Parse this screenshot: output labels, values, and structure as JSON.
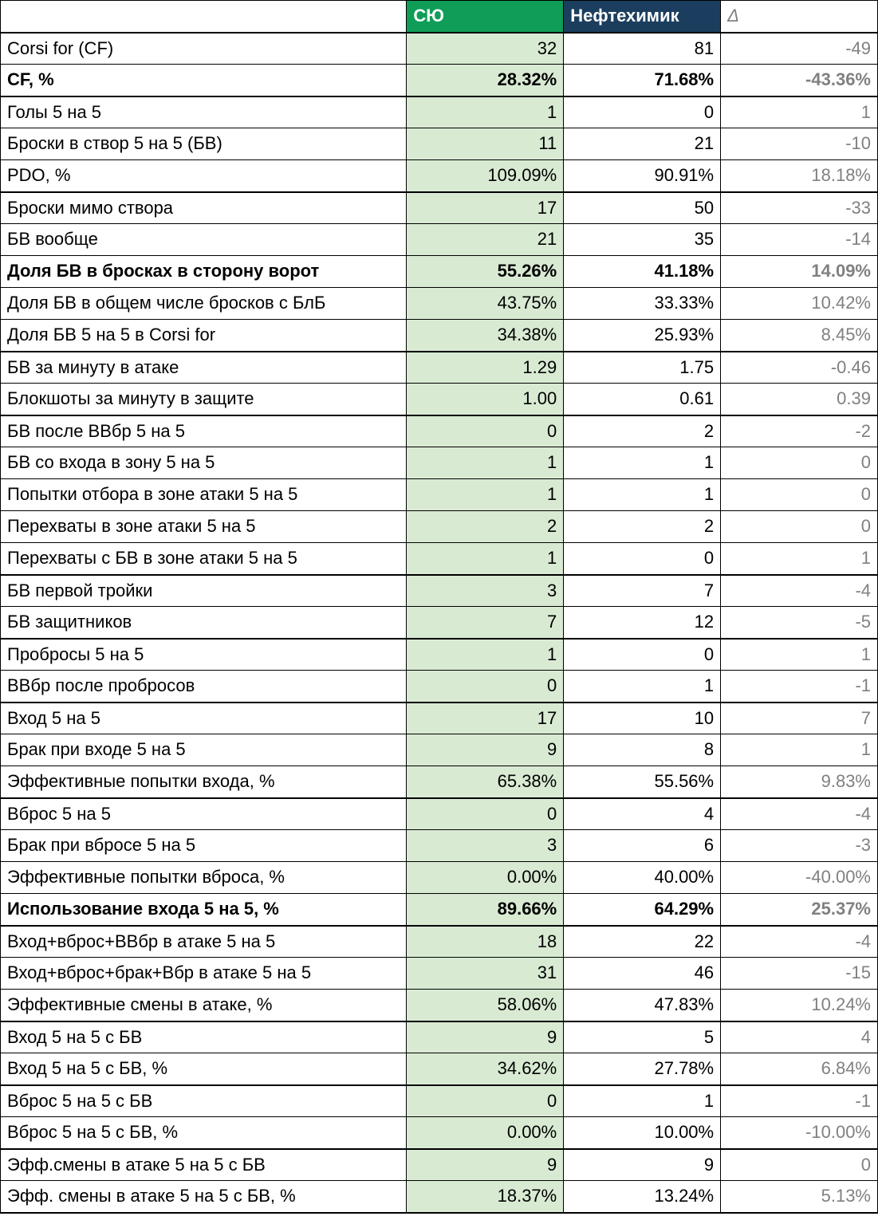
{
  "colors": {
    "team1_header_bg": "#0f9d58",
    "team2_header_bg": "#1c3e5e",
    "header_fg": "#ffffff",
    "team1_cell_bg": "#d9ead3",
    "row_border": "#000000",
    "delta_fg": "#808080"
  },
  "header": {
    "team1": "СЮ",
    "team2": "Нефтехимик",
    "delta": "Δ"
  },
  "rows": [
    {
      "label": "Corsi for (CF)",
      "v1": "32",
      "v2": "81",
      "d": "-49",
      "bold": false,
      "sep": false
    },
    {
      "label": "CF, %",
      "v1": "28.32%",
      "v2": "71.68%",
      "d": "-43.36%",
      "bold": true,
      "sep": true
    },
    {
      "label": "Голы 5 на 5",
      "v1": "1",
      "v2": "0",
      "d": "1",
      "bold": false,
      "sep": false
    },
    {
      "label": "Броски в створ 5 на 5 (БВ)",
      "v1": "11",
      "v2": "21",
      "d": "-10",
      "bold": false,
      "sep": false
    },
    {
      "label": "PDO, %",
      "v1": "109.09%",
      "v2": "90.91%",
      "d": "18.18%",
      "bold": false,
      "sep": true
    },
    {
      "label": "Броски мимо створа",
      "v1": "17",
      "v2": "50",
      "d": "-33",
      "bold": false,
      "sep": false
    },
    {
      "label": "БВ вообще",
      "v1": "21",
      "v2": "35",
      "d": "-14",
      "bold": false,
      "sep": false
    },
    {
      "label": "Доля БВ в бросках в сторону ворот",
      "v1": "55.26%",
      "v2": "41.18%",
      "d": "14.09%",
      "bold": true,
      "sep": false
    },
    {
      "label": "Доля БВ в общем числе бросков с БлБ",
      "v1": "43.75%",
      "v2": "33.33%",
      "d": "10.42%",
      "bold": false,
      "sep": false
    },
    {
      "label": "Доля БВ 5 на 5 в Corsi for",
      "v1": "34.38%",
      "v2": "25.93%",
      "d": "8.45%",
      "bold": false,
      "sep": true
    },
    {
      "label": "БВ за минуту в атаке",
      "v1": "1.29",
      "v2": "1.75",
      "d": "-0.46",
      "bold": false,
      "sep": false
    },
    {
      "label": "Блокшоты за минуту в защите",
      "v1": "1.00",
      "v2": "0.61",
      "d": "0.39",
      "bold": false,
      "sep": true
    },
    {
      "label": "БВ после ВВбр 5 на 5",
      "v1": "0",
      "v2": "2",
      "d": "-2",
      "bold": false,
      "sep": false
    },
    {
      "label": "БВ со входа в зону 5 на 5",
      "v1": "1",
      "v2": "1",
      "d": "0",
      "bold": false,
      "sep": false
    },
    {
      "label": "Попытки отбора в зоне атаки 5 на 5",
      "v1": "1",
      "v2": "1",
      "d": "0",
      "bold": false,
      "sep": false
    },
    {
      "label": "Перехваты в зоне атаки 5 на 5",
      "v1": "2",
      "v2": "2",
      "d": "0",
      "bold": false,
      "sep": false
    },
    {
      "label": "Перехваты с БВ в зоне атаки 5 на 5",
      "v1": "1",
      "v2": "0",
      "d": "1",
      "bold": false,
      "sep": true
    },
    {
      "label": "БВ первой тройки",
      "v1": "3",
      "v2": "7",
      "d": "-4",
      "bold": false,
      "sep": false
    },
    {
      "label": "БВ защитников",
      "v1": "7",
      "v2": "12",
      "d": "-5",
      "bold": false,
      "sep": true
    },
    {
      "label": "Пробросы 5 на 5",
      "v1": "1",
      "v2": "0",
      "d": "1",
      "bold": false,
      "sep": false
    },
    {
      "label": "ВВбр после пробросов",
      "v1": "0",
      "v2": "1",
      "d": "-1",
      "bold": false,
      "sep": true
    },
    {
      "label": "Вход 5 на 5",
      "v1": "17",
      "v2": "10",
      "d": "7",
      "bold": false,
      "sep": false
    },
    {
      "label": "Брак при входе 5 на 5",
      "v1": "9",
      "v2": "8",
      "d": "1",
      "bold": false,
      "sep": false
    },
    {
      "label": "Эффективные попытки входа, %",
      "v1": "65.38%",
      "v2": "55.56%",
      "d": "9.83%",
      "bold": false,
      "sep": true
    },
    {
      "label": "Вброс 5 на 5",
      "v1": "0",
      "v2": "4",
      "d": "-4",
      "bold": false,
      "sep": false
    },
    {
      "label": "Брак при вбросе 5 на 5",
      "v1": "3",
      "v2": "6",
      "d": "-3",
      "bold": false,
      "sep": false
    },
    {
      "label": "Эффективные попытки вброса, %",
      "v1": "0.00%",
      "v2": "40.00%",
      "d": "-40.00%",
      "bold": false,
      "sep": false
    },
    {
      "label": "Использование входа 5 на 5, %",
      "v1": "89.66%",
      "v2": "64.29%",
      "d": "25.37%",
      "bold": true,
      "sep": true
    },
    {
      "label": "Вход+вброс+ВВбр в атаке 5 на 5",
      "v1": "18",
      "v2": "22",
      "d": "-4",
      "bold": false,
      "sep": false
    },
    {
      "label": "Вход+вброс+брак+Вбр в атаке 5 на 5",
      "v1": "31",
      "v2": "46",
      "d": "-15",
      "bold": false,
      "sep": false
    },
    {
      "label": "Эффективные смены в атаке, %",
      "v1": "58.06%",
      "v2": "47.83%",
      "d": "10.24%",
      "bold": false,
      "sep": true
    },
    {
      "label": "Вход 5 на 5 с БВ",
      "v1": "9",
      "v2": "5",
      "d": "4",
      "bold": false,
      "sep": false
    },
    {
      "label": "Вход 5 на 5 с БВ, %",
      "v1": "34.62%",
      "v2": "27.78%",
      "d": "6.84%",
      "bold": false,
      "sep": true
    },
    {
      "label": "Вброс 5 на 5 с БВ",
      "v1": "0",
      "v2": "1",
      "d": "-1",
      "bold": false,
      "sep": false
    },
    {
      "label": "Вброс 5 на 5 с БВ, %",
      "v1": "0.00%",
      "v2": "10.00%",
      "d": "-10.00%",
      "bold": false,
      "sep": true
    },
    {
      "label": "Эфф.смены в атаке 5 на 5 с БВ",
      "v1": "9",
      "v2": "9",
      "d": "0",
      "bold": false,
      "sep": false
    },
    {
      "label": "Эфф. смены в атаке 5 на 5 с БВ, %",
      "v1": "18.37%",
      "v2": "13.24%",
      "d": "5.13%",
      "bold": false,
      "sep": true
    }
  ]
}
